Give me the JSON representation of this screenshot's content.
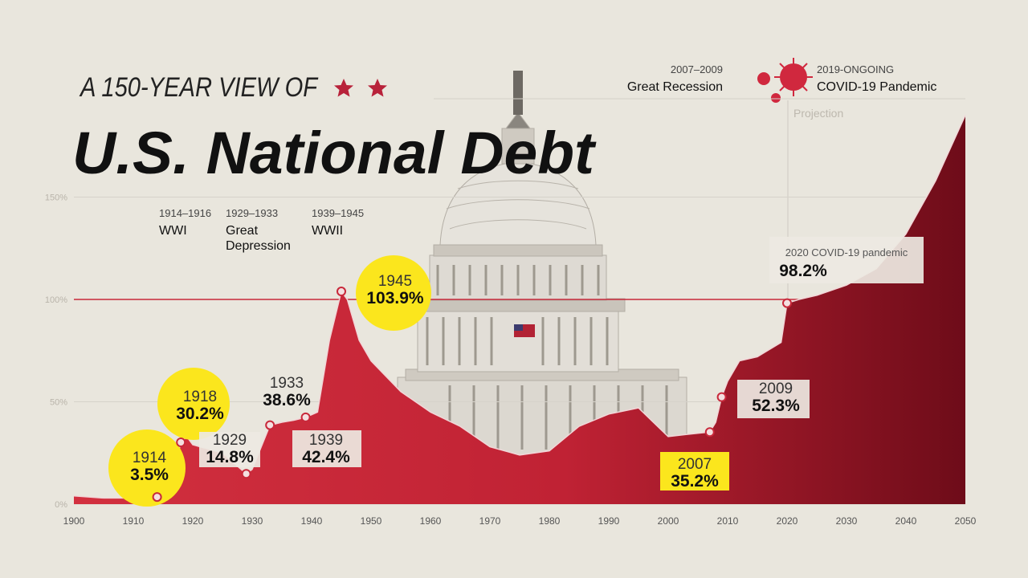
{
  "chart_data": {
    "type": "area",
    "subtitle": "A 150-YEAR VIEW OF",
    "title": "U.S. National Debt",
    "projection_label": "Projection",
    "x": [
      1900,
      1905,
      1910,
      1914,
      1916,
      1917,
      1918,
      1919,
      1920,
      1925,
      1929,
      1930,
      1933,
      1935,
      1937,
      1939,
      1941,
      1943,
      1945,
      1946,
      1948,
      1950,
      1955,
      1960,
      1965,
      1970,
      1975,
      1980,
      1985,
      1990,
      1995,
      2000,
      2003,
      2007,
      2008,
      2009,
      2010,
      2012,
      2015,
      2019,
      2020,
      2022,
      2025,
      2030,
      2035,
      2040,
      2045,
      2050
    ],
    "series": [
      {
        "color": "#c8283a",
        "values": [
          4,
          3,
          3,
          3.5,
          4,
          18,
          30.2,
          33,
          29,
          25,
          14.8,
          17,
          38.6,
          40,
          41,
          42.4,
          45,
          80,
          103.9,
          100,
          80,
          70,
          55,
          45,
          38,
          28,
          24,
          26,
          38,
          44,
          47,
          33,
          34,
          35.2,
          40,
          52.3,
          60,
          70,
          72,
          79,
          98.2,
          100,
          102,
          107,
          115,
          132,
          158,
          190
        ]
      }
    ],
    "xlim": [
      1900,
      2050
    ],
    "xticks": [
      1900,
      1910,
      1920,
      1930,
      1940,
      1950,
      1960,
      1970,
      1980,
      1990,
      2000,
      2010,
      2020,
      2030,
      2040,
      2050
    ],
    "ylim": [
      0,
      195
    ],
    "yticks": [
      {
        "value": 0,
        "label": "0%"
      },
      {
        "value": 50,
        "label": "50%"
      },
      {
        "value": 100,
        "label": "100%"
      },
      {
        "value": 150,
        "label": "150%"
      }
    ],
    "reference_line": 100,
    "reference_color": "#c8283a",
    "grid": true,
    "annotations": [
      {
        "x": 1914,
        "y": 3.5,
        "label": "3.5%",
        "highlight": "circle"
      },
      {
        "x": 1918,
        "y": 30.2,
        "label": "30.2%",
        "highlight": "circle"
      },
      {
        "x": 1929,
        "y": 14.8,
        "label": "14.8%",
        "highlight": "box"
      },
      {
        "x": 1933,
        "y": 38.6,
        "label": "38.6%",
        "highlight": "none"
      },
      {
        "x": 1939,
        "y": 42.4,
        "label": "42.4%",
        "highlight": "box"
      },
      {
        "x": 1945,
        "y": 103.9,
        "label": "103.9%",
        "highlight": "circle"
      },
      {
        "x": 2007,
        "y": 35.2,
        "label": "35.2%",
        "highlight": "yellow-box"
      },
      {
        "x": 2009,
        "y": 52.3,
        "label": "52.3%",
        "highlight": "box"
      },
      {
        "x": 2020,
        "y": 98.2,
        "label": "98.2%",
        "caption": "2020 COVID-19 pandemic",
        "highlight": "box"
      }
    ],
    "events": [
      {
        "period": "1914–1916",
        "name": "WWI"
      },
      {
        "period": "1929–1933",
        "name": "Great Depression"
      },
      {
        "period": "1939–1945",
        "name": "WWII"
      },
      {
        "period": "2007–2009",
        "name": "Great Recession"
      },
      {
        "period": "2019-ONGOING",
        "name": "COVID-19 Pandemic"
      }
    ]
  }
}
